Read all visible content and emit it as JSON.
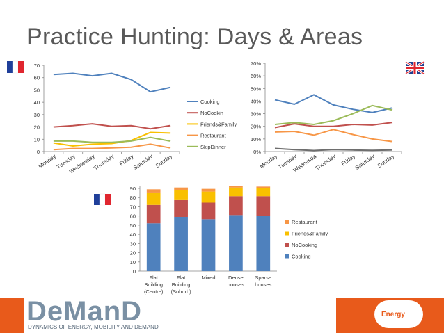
{
  "slide": {
    "title": "Practice Hunting: Days & Areas"
  },
  "footer": {
    "logo_text": "DeManD",
    "logo_tagline": "DYNAMICS OF ENERGY, MOBILITY AND DEMAND",
    "partner_logo": "Energy"
  },
  "flags": [
    "france-flag",
    "uk-flag",
    "france-flag"
  ],
  "colors": {
    "Cooking": "#4f81bd",
    "NoCookin": "#c0504d",
    "Friends&Family": "#f9c000",
    "Restaurant": "#f79646",
    "SkipDinner": "#9bbb59",
    "grey": "#6e6e6e",
    "footer": "#e85a1b"
  },
  "chart_data": [
    {
      "type": "line",
      "categories": [
        "Monday",
        "Tuesday",
        "Wednesday",
        "Thursday",
        "Friday",
        "Saturday",
        "Sunday"
      ],
      "ylim": [
        0,
        70
      ],
      "yticks": [
        "0",
        "10",
        "20",
        "30",
        "40",
        "50",
        "60",
        "70"
      ],
      "grid": false,
      "legend": "right",
      "series": [
        {
          "name": "Cooking",
          "values": [
            62.5,
            63.5,
            61.5,
            63.5,
            58.5,
            48.5,
            52.0
          ]
        },
        {
          "name": "NoCookin",
          "values": [
            20.0,
            21.0,
            22.5,
            20.5,
            21.0,
            18.5,
            21.0
          ]
        },
        {
          "name": "Friends&Family",
          "values": [
            7.0,
            4.5,
            6.0,
            6.5,
            9.0,
            15.5,
            15.0
          ]
        },
        {
          "name": "Restaurant",
          "values": [
            1.5,
            2.5,
            2.5,
            3.0,
            3.5,
            6.0,
            3.0
          ]
        },
        {
          "name": "SkipDinner",
          "values": [
            8.5,
            8.5,
            7.5,
            7.5,
            8.5,
            11.5,
            8.5
          ]
        }
      ]
    },
    {
      "type": "line",
      "categories": [
        "Monday",
        "Tuesday",
        "Wednesda",
        "Thursday",
        "Friday",
        "Saturday",
        "Sunday"
      ],
      "ylim": [
        0,
        70
      ],
      "yticks": [
        "0%",
        "10%",
        "20%",
        "30%",
        "40%",
        "50%",
        "60%",
        "70%"
      ],
      "grid": false,
      "series": [
        {
          "color": "Cooking",
          "values": [
            41,
            37.5,
            45,
            37,
            33.5,
            31,
            34.5
          ]
        },
        {
          "color": "NoCookin",
          "values": [
            19,
            22,
            20,
            20,
            21.5,
            21,
            23
          ]
        },
        {
          "color": "SkipDinner",
          "values": [
            21.5,
            23,
            21.5,
            24.5,
            30,
            36.5,
            33
          ]
        },
        {
          "color": "Restaurant",
          "values": [
            15.5,
            16,
            13,
            17.5,
            13.5,
            10,
            8
          ]
        },
        {
          "color": "grey",
          "values": [
            2.5,
            1.5,
            0.8,
            1.5,
            1.2,
            1.0,
            1.2
          ]
        }
      ]
    },
    {
      "type": "bar",
      "stacked": true,
      "categories": [
        [
          "Flat",
          "Building",
          "(Centre)"
        ],
        [
          "Flat",
          "Building",
          "(Suburb)"
        ],
        [
          "Mixed"
        ],
        [
          "Dense",
          "houses"
        ],
        [
          "Sparse",
          "houses"
        ]
      ],
      "ylim": [
        0,
        90
      ],
      "yticks": [
        "0",
        "10",
        "20",
        "30",
        "40",
        "50",
        "60",
        "70",
        "80",
        "90"
      ],
      "legend": "right",
      "series": [
        {
          "name": "Cooking",
          "values": [
            52,
            59,
            56.5,
            61,
            60
          ]
        },
        {
          "name": "NoCooking",
          "values": [
            20,
            19,
            18,
            20.5,
            21.5
          ]
        },
        {
          "name": "Friends&Family",
          "values": [
            13.5,
            10.5,
            12,
            9.5,
            8.5
          ]
        },
        {
          "name": "Restaurant",
          "values": [
            3.5,
            2.5,
            3,
            1.5,
            2
          ]
        }
      ]
    }
  ]
}
